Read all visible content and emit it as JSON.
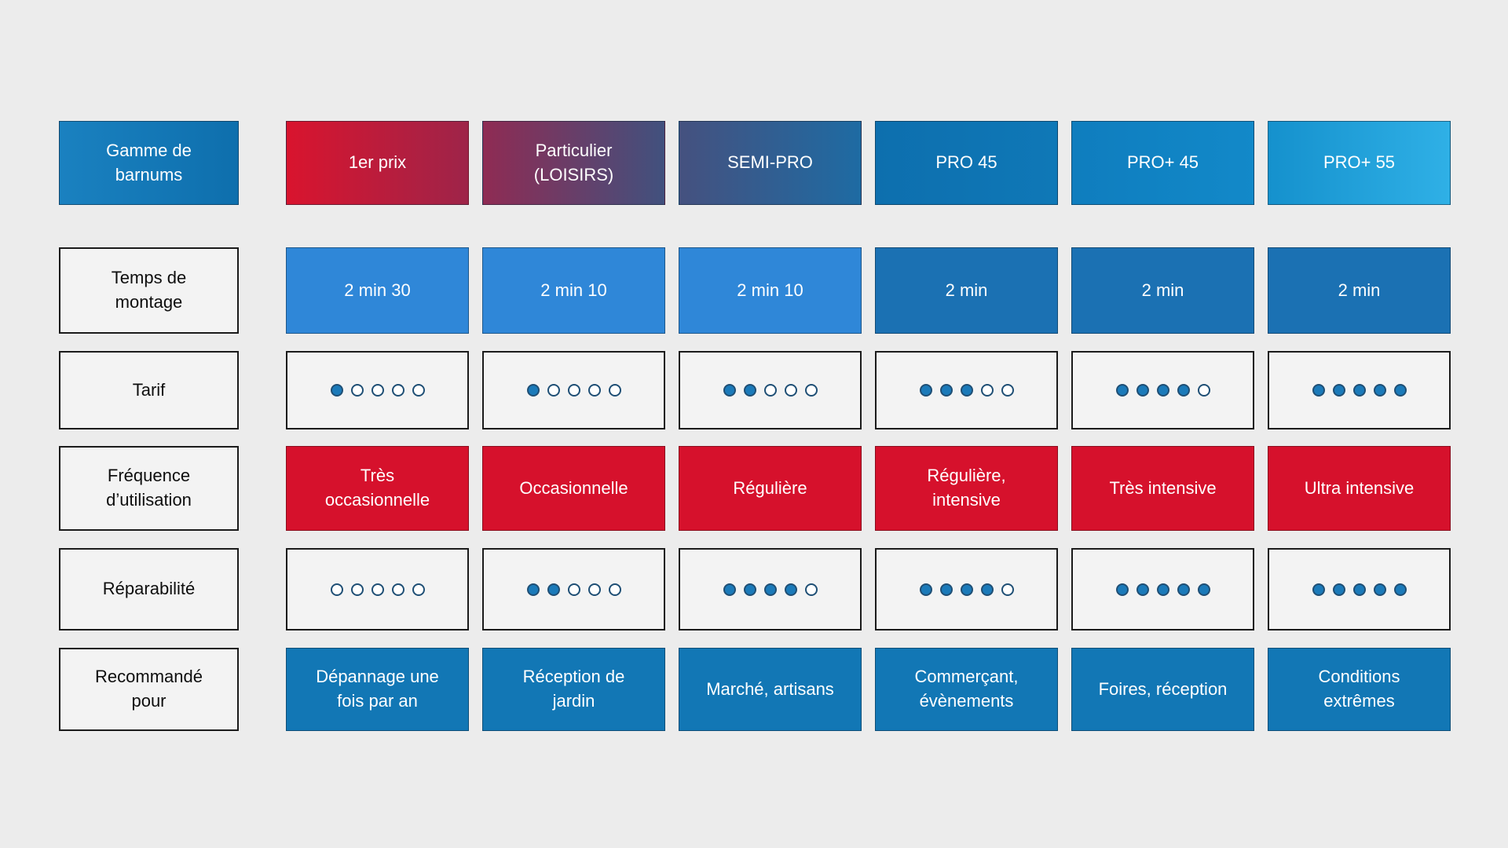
{
  "chart_data": {
    "type": "table",
    "title": "Gamme de\nbarnums",
    "rating_scale": 5,
    "columns": [
      "1er prix",
      "Particulier\n(LOISIRS)",
      "SEMI-PRO",
      "PRO 45",
      "PRO+ 45",
      "PRO+ 55"
    ],
    "rows": [
      {
        "label": "Temps de\nmontage",
        "type": "text",
        "values": [
          "2 min 30",
          "2 min 10",
          "2 min 10",
          "2 min",
          "2 min",
          "2 min"
        ]
      },
      {
        "label": "Tarif",
        "type": "rating",
        "values": [
          1,
          1,
          2,
          3,
          4,
          5
        ]
      },
      {
        "label": "Fréquence\nd’utilisation",
        "type": "text",
        "values": [
          "Très\noccasionnelle",
          "Occasionnelle",
          "Régulière",
          "Régulière,\nintensive",
          "Très intensive",
          "Ultra intensive"
        ]
      },
      {
        "label": "Réparabilité",
        "type": "rating",
        "values": [
          0,
          2,
          4,
          4,
          5,
          5
        ]
      },
      {
        "label": "Recommandé\npour",
        "type": "text",
        "values": [
          "Dépannage une\nfois par an",
          "Réception de\njardin",
          "Marché, artisans",
          "Commerçant,\névènements",
          "Foires, réception",
          "Conditions\nextrêmes"
        ]
      }
    ]
  },
  "colors": {
    "background": "#ececec",
    "label_header_bg": [
      "#1a81c0",
      "#0e6fad"
    ],
    "header_gradients": [
      [
        "#d9142e",
        "#9e2449"
      ],
      [
        "#8f2b53",
        "#41517e"
      ],
      [
        "#45517f",
        "#1e6ba3"
      ],
      [
        "#0d6fae",
        "#0f78b7"
      ],
      [
        "#0f7dbe",
        "#1289c9"
      ],
      [
        "#1591cd",
        "#2fb0e6"
      ]
    ],
    "montage_blue_light": "#2f87d8",
    "montage_blue_dark": "#1b71b3",
    "frequency_red": "#d6112c",
    "recommended_blue": "#1277b5",
    "rating_dot_fill": "#1b7ab9",
    "rating_dot_border": "#1f4f75",
    "light_cell_bg": "#f3f3f3",
    "cell_border": "#1b1b1b",
    "text_on_color": "#ffffff",
    "text_dark": "#0e0e0e"
  }
}
